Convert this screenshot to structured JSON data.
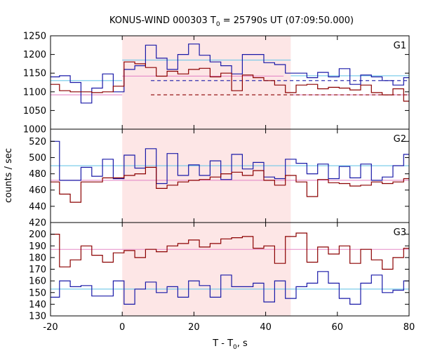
{
  "chart_data": {
    "type": "line",
    "title_main": "KONUS-WIND 000303 T",
    "title_sub": "0",
    "title_rest": " = 25790s UT (07:09:50.000)",
    "xlabel_main": "T - T",
    "xlabel_sub": "0",
    "xlabel_rest": ", s",
    "ylabel": "counts / sec",
    "xlim": [
      -20,
      80
    ],
    "x_ticks": [
      -20,
      0,
      20,
      40,
      60,
      80
    ],
    "shaded_interval": [
      0,
      47
    ],
    "grid": false,
    "bin_edges": [
      -20.5,
      -17.5,
      -14.5,
      -11.5,
      -8.5,
      -5.5,
      -2.5,
      0.5,
      3.5,
      6.5,
      9.5,
      12.5,
      15.5,
      18.5,
      21.5,
      24.5,
      27.5,
      30.5,
      33.5,
      36.5,
      39.5,
      42.5,
      45.5,
      48.5,
      51.5,
      54.5,
      57.5,
      60.5,
      63.5,
      66.5,
      69.5,
      72.5,
      75.5,
      78.5,
      80.0
    ],
    "panels": [
      {
        "label": "G1",
        "ylim": [
          1000,
          1250
        ],
        "y_ticks": [
          1000,
          1050,
          1100,
          1150,
          1200,
          1250
        ],
        "series": [
          {
            "color": "#1a1aa8",
            "values": [
              1140,
              1143,
              1125,
              1070,
              1110,
              1148,
              1100,
              1160,
              1170,
              1225,
              1190,
              1160,
              1200,
              1228,
              1198,
              1180,
              1170,
              1148,
              1200,
              1200,
              1178,
              1173,
              1150,
              1150,
              1138,
              1152,
              1140,
              1162,
              1120,
              1145,
              1140,
              1130,
              1118,
              1138
            ],
            "line_width": 1.2
          },
          {
            "color": "#8b0000",
            "values": [
              1120,
              1103,
              1100,
              1100,
              1098,
              1100,
              1115,
              1180,
              1175,
              1165,
              1142,
              1155,
              1148,
              1160,
              1163,
              1140,
              1150,
              1103,
              1145,
              1138,
              1130,
              1118,
              1098,
              1118,
              1120,
              1108,
              1112,
              1110,
              1105,
              1118,
              1098,
              1092,
              1108,
              1075
            ],
            "line_width": 1.2
          }
        ],
        "reference_lines": [
          {
            "color": "#6fc8e8",
            "dashed": false,
            "segments": [
              [
                -20,
                1130,
                0,
                1130
              ],
              [
                0,
                1185,
                47,
                1185
              ],
              [
                47,
                1143,
                80,
                1143
              ]
            ]
          },
          {
            "color": "#e58bc8",
            "dashed": false,
            "segments": [
              [
                -20,
                1092,
                0,
                1092
              ],
              [
                0,
                1142,
                45,
                1142
              ],
              [
                47,
                1092,
                80,
                1092
              ]
            ]
          },
          {
            "color": "#1a1aa8",
            "dashed": true,
            "segments": [
              [
                8,
                1130,
                80,
                1130
              ]
            ]
          },
          {
            "color": "#8b0000",
            "dashed": true,
            "segments": [
              [
                8,
                1092,
                80,
                1092
              ]
            ]
          }
        ]
      },
      {
        "label": "G2",
        "ylim": [
          420,
          535
        ],
        "y_ticks": [
          420,
          440,
          460,
          480,
          500,
          520
        ],
        "series": [
          {
            "color": "#1a1aa8",
            "values": [
              520,
              472,
              472,
              488,
              477,
              498,
              474,
              503,
              487,
              511,
              468,
              505,
              478,
              491,
              478,
              496,
              473,
              504,
              486,
              494,
              476,
              474,
              498,
              493,
              480,
              492,
              474,
              489,
              475,
              492,
              472,
              476,
              490,
              504
            ],
            "line_width": 1.2
          },
          {
            "color": "#8b0000",
            "values": [
              470,
              455,
              445,
              470,
              470,
              475,
              475,
              478,
              480,
              488,
              462,
              466,
              470,
              472,
              473,
              476,
              480,
              482,
              478,
              484,
              472,
              466,
              478,
              470,
              452,
              473,
              469,
              468,
              465,
              466,
              470,
              468,
              470,
              474
            ],
            "line_width": 1.2
          }
        ],
        "reference_lines": [
          {
            "color": "#6fc8e8",
            "dashed": false,
            "segments": [
              [
                -20,
                490,
                80,
                490
              ]
            ]
          },
          {
            "color": "#e58bc8",
            "dashed": false,
            "segments": [
              [
                -20,
                472,
                80,
                472
              ]
            ]
          }
        ]
      },
      {
        "label": "G3",
        "ylim": [
          130,
          210
        ],
        "y_ticks": [
          130,
          140,
          150,
          160,
          170,
          180,
          190,
          200
        ],
        "series": [
          {
            "color": "#8b0000",
            "values": [
              200,
              172,
              178,
              190,
              182,
              176,
              184,
              186,
              180,
              187,
              185,
              190,
              192,
              195,
              189,
              192,
              196,
              197,
              198,
              188,
              190,
              175,
              198,
              201,
              176,
              189,
              183,
              190,
              175,
              187,
              178,
              170,
              180,
              188
            ],
            "line_width": 1.2
          },
          {
            "color": "#1a1aa8",
            "values": [
              146,
              160,
              155,
              156,
              147,
              147,
              160,
              140,
              153,
              159,
              150,
              155,
              146,
              160,
              156,
              146,
              165,
              155,
              155,
              158,
              142,
              160,
              145,
              155,
              158,
              168,
              158,
              145,
              140,
              158,
              165,
              150,
              152,
              160
            ],
            "line_width": 1.2
          }
        ],
        "reference_lines": [
          {
            "color": "#6fc8e8",
            "dashed": false,
            "segments": [
              [
                -20,
                153,
                80,
                153
              ]
            ]
          },
          {
            "color": "#e58bc8",
            "dashed": false,
            "segments": [
              [
                -20,
                187,
                80,
                187
              ]
            ]
          }
        ]
      }
    ]
  }
}
